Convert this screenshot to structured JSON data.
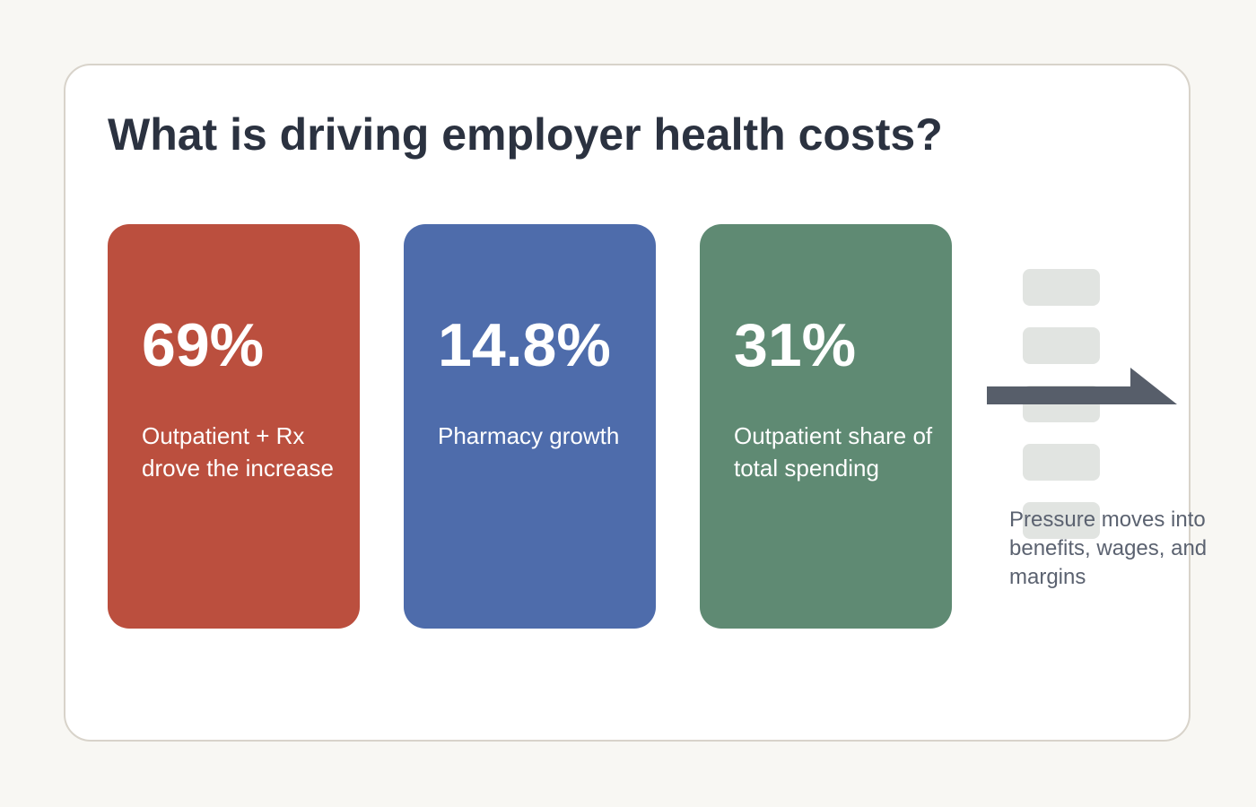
{
  "title": "What is driving employer health costs?",
  "cards": [
    {
      "value": "69%",
      "label": "Outpatient + Rx drove the increase",
      "color": "#bb4f3e"
    },
    {
      "value": "14.8%",
      "label": "Pharmacy growth",
      "color": "#4e6cab"
    },
    {
      "value": "31%",
      "label": "Outpatient share of total spending",
      "color": "#5f8a73"
    }
  ],
  "pressure": {
    "note": "Pressure moves into benefits, wages, and margins",
    "block_color": "#e1e4e1",
    "arrow_color": "#575e6a"
  }
}
